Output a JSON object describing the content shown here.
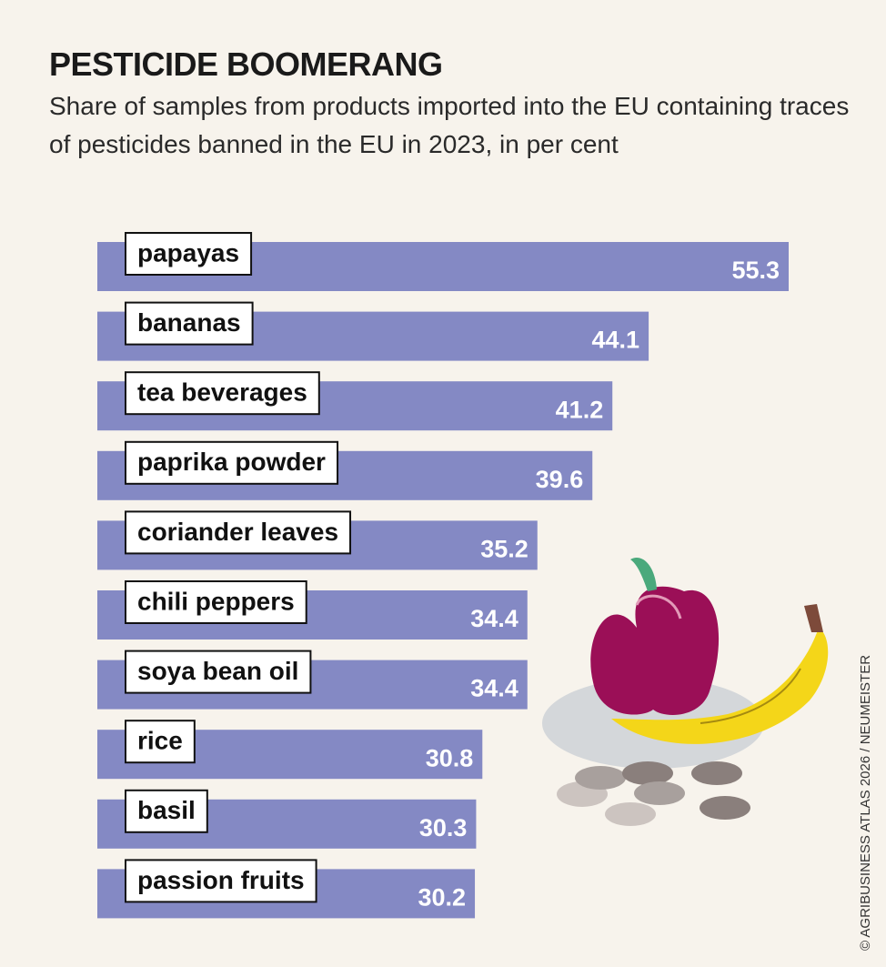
{
  "chart_data": {
    "type": "bar",
    "title": "PESTICIDE BOOMERANG",
    "subtitle": "Share of samples from products imported into the EU containing traces of pesticides banned in the EU in 2023, in per cent",
    "categories": [
      "papayas",
      "bananas",
      "tea beverages",
      "paprika powder",
      "coriander leaves",
      "chili peppers",
      "soya bean oil",
      "rice",
      "basil",
      "passion fruits"
    ],
    "values": [
      55.3,
      44.1,
      41.2,
      39.6,
      35.2,
      34.4,
      34.4,
      30.8,
      30.3,
      30.2
    ],
    "color": "#8489c4",
    "credit": "© AGRIBUSINESS ATLAS 2026 / NEUMEISTER"
  }
}
